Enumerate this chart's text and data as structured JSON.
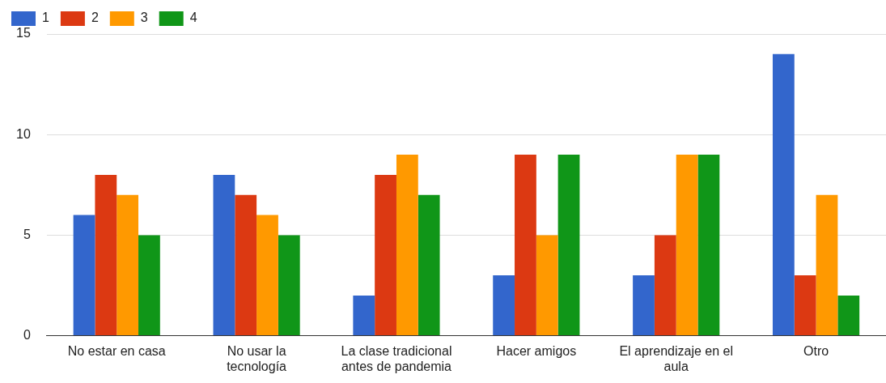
{
  "chart_data": {
    "type": "bar",
    "categories": [
      "No estar en casa",
      "No usar la tecnología",
      "La clase tradicional antes de pandemia",
      "Hacer amigos",
      "El aprendizaje en el aula",
      "Otro"
    ],
    "series": [
      {
        "name": "1",
        "color": "#3366cc",
        "values": [
          6,
          8,
          2,
          3,
          3,
          14
        ]
      },
      {
        "name": "2",
        "color": "#dc3912",
        "values": [
          8,
          7,
          8,
          9,
          5,
          3
        ]
      },
      {
        "name": "3",
        "color": "#ff9900",
        "values": [
          7,
          6,
          9,
          5,
          9,
          7
        ]
      },
      {
        "name": "4",
        "color": "#109618",
        "values": [
          5,
          5,
          7,
          9,
          9,
          2
        ]
      }
    ],
    "ylim": [
      0,
      15
    ],
    "yticks": [
      0,
      5,
      10,
      15
    ],
    "grid": "y",
    "legend": "top left"
  }
}
